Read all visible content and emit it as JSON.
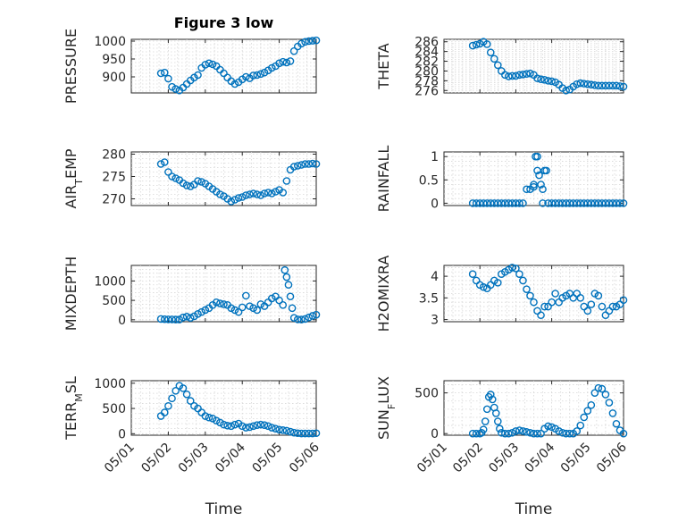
{
  "figure": {
    "title": "Figure 3 low"
  },
  "chart_data": [
    {
      "type": "scatter",
      "ylabel": "PRESSURE",
      "xlabel": "",
      "xlim": [
        0,
        5
      ],
      "ylim": [
        855,
        1005
      ],
      "yticks": [
        900,
        950,
        1000
      ],
      "xticks": [
        0,
        1,
        2,
        3,
        4,
        5
      ],
      "xticklabels": [
        "05/01",
        "05/02",
        "05/03",
        "05/04",
        "05/05",
        "05/06"
      ],
      "show_xticklabels": false,
      "title": "Figure 3 low",
      "x": [
        0.8,
        0.9,
        1.0,
        1.1,
        1.2,
        1.3,
        1.4,
        1.5,
        1.6,
        1.7,
        1.8,
        1.9,
        2.0,
        2.1,
        2.2,
        2.3,
        2.4,
        2.5,
        2.6,
        2.7,
        2.8,
        2.9,
        3.0,
        3.1,
        3.2,
        3.3,
        3.4,
        3.5,
        3.6,
        3.7,
        3.8,
        3.9,
        4.0,
        4.1,
        4.2,
        4.3,
        4.4,
        4.5,
        4.6,
        4.7,
        4.8,
        4.9,
        5.0
      ],
      "y": [
        910,
        912,
        895,
        872,
        866,
        862,
        870,
        880,
        890,
        898,
        905,
        925,
        934,
        938,
        935,
        930,
        920,
        910,
        898,
        888,
        880,
        885,
        893,
        900,
        896,
        904,
        905,
        908,
        912,
        918,
        925,
        930,
        938,
        942,
        940,
        944,
        972,
        985,
        993,
        998,
        1000,
        1001,
        1002
      ]
    },
    {
      "type": "scatter",
      "ylabel": "THETA",
      "xlabel": "",
      "xlim": [
        0,
        5
      ],
      "ylim": [
        275.5,
        286.5
      ],
      "yticks": [
        276,
        278,
        280,
        282,
        284,
        286
      ],
      "xticks": [
        0,
        1,
        2,
        3,
        4,
        5
      ],
      "xticklabels": [
        "05/01",
        "05/02",
        "05/03",
        "05/04",
        "05/05",
        "05/06"
      ],
      "show_xticklabels": false,
      "x": [
        0.8,
        0.9,
        1.0,
        1.1,
        1.2,
        1.3,
        1.4,
        1.5,
        1.6,
        1.7,
        1.8,
        1.9,
        2.0,
        2.1,
        2.2,
        2.3,
        2.4,
        2.5,
        2.6,
        2.7,
        2.8,
        2.9,
        3.0,
        3.1,
        3.2,
        3.3,
        3.4,
        3.5,
        3.6,
        3.7,
        3.8,
        3.9,
        4.0,
        4.1,
        4.2,
        4.3,
        4.4,
        4.5,
        4.6,
        4.7,
        4.8,
        4.9,
        5.0
      ],
      "y": [
        285.2,
        285.4,
        285.6,
        286.0,
        285.5,
        283.8,
        282.5,
        281.2,
        280.0,
        279.2,
        278.9,
        279.0,
        279.0,
        279.2,
        279.3,
        279.4,
        279.5,
        279.2,
        278.5,
        278.3,
        278.2,
        278.0,
        277.9,
        277.7,
        277.2,
        276.5,
        276.0,
        276.2,
        276.8,
        277.3,
        277.5,
        277.4,
        277.3,
        277.2,
        277.1,
        277.0,
        277.0,
        277.0,
        277.0,
        277.0,
        277.0,
        276.9,
        276.8
      ]
    },
    {
      "type": "scatter",
      "ylabel": "AIR_TEMP",
      "xlabel": "",
      "xlim": [
        0,
        5
      ],
      "ylim": [
        268.5,
        280.5
      ],
      "yticks": [
        270,
        275,
        280
      ],
      "xticks": [
        0,
        1,
        2,
        3,
        4,
        5
      ],
      "xticklabels": [
        "05/01",
        "05/02",
        "05/03",
        "05/04",
        "05/05",
        "05/06"
      ],
      "show_xticklabels": false,
      "x": [
        0.8,
        0.9,
        1.0,
        1.1,
        1.2,
        1.3,
        1.4,
        1.5,
        1.6,
        1.7,
        1.8,
        1.9,
        2.0,
        2.1,
        2.2,
        2.3,
        2.4,
        2.5,
        2.6,
        2.7,
        2.8,
        2.9,
        3.0,
        3.1,
        3.2,
        3.3,
        3.4,
        3.5,
        3.6,
        3.7,
        3.8,
        3.9,
        4.0,
        4.1,
        4.2,
        4.3,
        4.4,
        4.5,
        4.6,
        4.7,
        4.8,
        4.9,
        5.0
      ],
      "y": [
        277.8,
        278.2,
        276.0,
        275.0,
        274.6,
        274.2,
        273.5,
        273.0,
        272.8,
        273.2,
        274.0,
        273.8,
        273.4,
        272.8,
        272.2,
        271.6,
        271.0,
        270.6,
        270.0,
        269.4,
        269.8,
        270.2,
        270.4,
        270.8,
        271.0,
        271.2,
        271.0,
        270.8,
        271.2,
        271.4,
        271.2,
        271.6,
        272.0,
        271.4,
        274.0,
        276.5,
        277.2,
        277.4,
        277.6,
        277.8,
        277.8,
        277.9,
        277.8
      ]
    },
    {
      "type": "scatter",
      "ylabel": "RAINFALL",
      "xlabel": "",
      "xlim": [
        0,
        5
      ],
      "ylim": [
        -0.05,
        1.1
      ],
      "yticks": [
        0,
        0.5,
        1
      ],
      "xticks": [
        0,
        1,
        2,
        3,
        4,
        5
      ],
      "xticklabels": [
        "05/01",
        "05/02",
        "05/03",
        "05/04",
        "05/05",
        "05/06"
      ],
      "show_xticklabels": false,
      "x": [
        0.8,
        0.9,
        1.0,
        1.1,
        1.2,
        1.3,
        1.4,
        1.5,
        1.6,
        1.7,
        1.8,
        1.9,
        2.0,
        2.1,
        2.2,
        2.3,
        2.4,
        2.5,
        2.5,
        2.55,
        2.6,
        2.6,
        2.65,
        2.7,
        2.75,
        2.75,
        2.8,
        2.85,
        2.9,
        3.0,
        3.1,
        3.2,
        3.3,
        3.4,
        3.5,
        3.6,
        3.7,
        3.8,
        3.9,
        4.0,
        4.1,
        4.2,
        4.3,
        4.4,
        4.5,
        4.6,
        4.7,
        4.8,
        4.9,
        5.0
      ],
      "y": [
        0,
        0,
        0,
        0,
        0,
        0,
        0,
        0,
        0,
        0,
        0,
        0,
        0,
        0,
        0,
        0.3,
        0.3,
        0.35,
        0.4,
        1.0,
        1.0,
        0.7,
        0.6,
        0.4,
        0.3,
        0,
        0.7,
        0.7,
        0,
        0,
        0,
        0,
        0,
        0,
        0,
        0,
        0,
        0,
        0,
        0,
        0,
        0,
        0,
        0,
        0,
        0,
        0,
        0,
        0,
        0
      ]
    },
    {
      "type": "scatter",
      "ylabel": "MIXDEPTH",
      "xlabel": "",
      "xlim": [
        0,
        5
      ],
      "ylim": [
        -50,
        1400
      ],
      "yticks": [
        0,
        500,
        1000
      ],
      "xticks": [
        0,
        1,
        2,
        3,
        4,
        5
      ],
      "xticklabels": [
        "05/01",
        "05/02",
        "05/03",
        "05/04",
        "05/05",
        "05/06"
      ],
      "show_xticklabels": false,
      "x": [
        0.8,
        0.9,
        1.0,
        1.1,
        1.2,
        1.3,
        1.4,
        1.5,
        1.6,
        1.7,
        1.8,
        1.9,
        2.0,
        2.1,
        2.2,
        2.3,
        2.4,
        2.5,
        2.6,
        2.7,
        2.8,
        2.9,
        3.0,
        3.1,
        3.2,
        3.3,
        3.4,
        3.5,
        3.6,
        3.7,
        3.8,
        3.9,
        4.0,
        4.1,
        4.15,
        4.2,
        4.25,
        4.3,
        4.35,
        4.4,
        4.5,
        4.6,
        4.7,
        4.8,
        4.9,
        5.0
      ],
      "y": [
        20,
        15,
        10,
        10,
        5,
        5,
        60,
        80,
        50,
        90,
        150,
        200,
        250,
        300,
        380,
        450,
        420,
        400,
        380,
        300,
        250,
        200,
        320,
        620,
        350,
        300,
        250,
        400,
        350,
        450,
        550,
        600,
        500,
        380,
        1280,
        1100,
        900,
        600,
        300,
        50,
        10,
        5,
        20,
        60,
        100,
        130
      ]
    },
    {
      "type": "scatter",
      "ylabel": "H2OMIXRA",
      "xlabel": "",
      "xlim": [
        0,
        5
      ],
      "ylim": [
        2.95,
        4.25
      ],
      "yticks": [
        3,
        3.5,
        4
      ],
      "xticks": [
        0,
        1,
        2,
        3,
        4,
        5
      ],
      "xticklabels": [
        "05/01",
        "05/02",
        "05/03",
        "05/04",
        "05/05",
        "05/06"
      ],
      "show_xticklabels": false,
      "x": [
        0.8,
        0.9,
        1.0,
        1.1,
        1.2,
        1.3,
        1.4,
        1.5,
        1.6,
        1.7,
        1.8,
        1.9,
        2.0,
        2.1,
        2.2,
        2.3,
        2.4,
        2.5,
        2.6,
        2.7,
        2.8,
        2.9,
        3.0,
        3.1,
        3.2,
        3.3,
        3.4,
        3.5,
        3.6,
        3.7,
        3.8,
        3.9,
        4.0,
        4.1,
        4.2,
        4.3,
        4.4,
        4.5,
        4.6,
        4.7,
        4.8,
        4.9,
        5.0
      ],
      "y": [
        4.05,
        3.9,
        3.8,
        3.75,
        3.72,
        3.8,
        3.9,
        3.85,
        4.05,
        4.1,
        4.15,
        4.2,
        4.18,
        4.05,
        3.9,
        3.7,
        3.55,
        3.4,
        3.2,
        3.1,
        3.3,
        3.3,
        3.4,
        3.6,
        3.4,
        3.5,
        3.55,
        3.6,
        3.5,
        3.6,
        3.5,
        3.3,
        3.2,
        3.35,
        3.6,
        3.55,
        3.3,
        3.1,
        3.2,
        3.3,
        3.3,
        3.35,
        3.45
      ]
    },
    {
      "type": "scatter",
      "ylabel": "TERR_MSL",
      "xlabel": "Time",
      "xlim": [
        0,
        5
      ],
      "ylim": [
        -30,
        1050
      ],
      "yticks": [
        0,
        500,
        1000
      ],
      "xticks": [
        0,
        1,
        2,
        3,
        4,
        5
      ],
      "xticklabels": [
        "05/01",
        "05/02",
        "05/03",
        "05/04",
        "05/05",
        "05/06"
      ],
      "show_xticklabels": true,
      "x": [
        0.8,
        0.9,
        1.0,
        1.1,
        1.2,
        1.3,
        1.4,
        1.5,
        1.6,
        1.7,
        1.8,
        1.9,
        2.0,
        2.1,
        2.2,
        2.3,
        2.4,
        2.5,
        2.6,
        2.7,
        2.8,
        2.9,
        3.0,
        3.1,
        3.2,
        3.3,
        3.4,
        3.5,
        3.6,
        3.7,
        3.8,
        3.9,
        4.0,
        4.1,
        4.2,
        4.3,
        4.4,
        4.5,
        4.6,
        4.7,
        4.8,
        4.9,
        5.0
      ],
      "y": [
        350,
        420,
        550,
        700,
        850,
        950,
        900,
        780,
        650,
        550,
        500,
        420,
        350,
        320,
        300,
        260,
        220,
        180,
        160,
        150,
        180,
        200,
        150,
        120,
        130,
        150,
        170,
        180,
        170,
        150,
        120,
        100,
        80,
        70,
        60,
        40,
        20,
        10,
        5,
        5,
        5,
        5,
        10
      ]
    },
    {
      "type": "scatter",
      "ylabel": "SUN_FLUX",
      "xlabel": "Time",
      "xlim": [
        0,
        5
      ],
      "ylim": [
        -20,
        650
      ],
      "yticks": [
        0,
        500
      ],
      "xticks": [
        0,
        1,
        2,
        3,
        4,
        5
      ],
      "xticklabels": [
        "05/01",
        "05/02",
        "05/03",
        "05/04",
        "05/05",
        "05/06"
      ],
      "show_xticklabels": true,
      "x": [
        0.8,
        0.9,
        1.0,
        1.05,
        1.1,
        1.15,
        1.2,
        1.25,
        1.3,
        1.35,
        1.4,
        1.45,
        1.5,
        1.55,
        1.6,
        1.7,
        1.8,
        1.9,
        2.0,
        2.1,
        2.2,
        2.3,
        2.4,
        2.5,
        2.6,
        2.7,
        2.8,
        2.9,
        3.0,
        3.1,
        3.2,
        3.3,
        3.4,
        3.5,
        3.6,
        3.7,
        3.8,
        3.9,
        4.0,
        4.1,
        4.2,
        4.3,
        4.4,
        4.5,
        4.6,
        4.7,
        4.8,
        4.9,
        5.0
      ],
      "y": [
        0,
        0,
        0,
        10,
        50,
        150,
        300,
        450,
        480,
        420,
        320,
        250,
        150,
        60,
        10,
        0,
        0,
        10,
        30,
        40,
        30,
        20,
        10,
        0,
        0,
        0,
        60,
        90,
        80,
        60,
        30,
        10,
        0,
        0,
        0,
        30,
        100,
        200,
        280,
        350,
        500,
        560,
        550,
        480,
        380,
        250,
        120,
        40,
        0
      ]
    }
  ]
}
